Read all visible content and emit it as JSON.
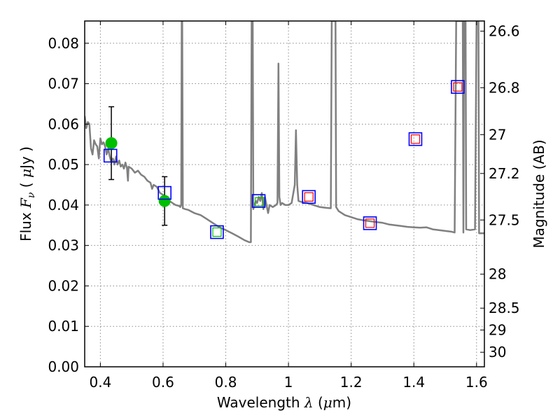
{
  "chart_data": {
    "type": "scatter",
    "xlabel": {
      "text": "Wavelength",
      "symbol": "λ",
      "unit_open": " (",
      "mu": "μ",
      "unit_end": "m)"
    },
    "ylabel": {
      "text": "Flux",
      "symbol": "F",
      "sub": "ν",
      "unit_open": "(",
      "mu": "μ",
      "unit_end": "Jy )"
    },
    "y2label": "Magnitude (AB)",
    "xlim": [
      0.35,
      1.625
    ],
    "ylim": [
      0.0,
      0.0855
    ],
    "xticks": [
      0.4,
      0.6,
      0.8,
      1.0,
      1.2,
      1.4,
      1.6
    ],
    "xtick_labels": [
      "0.4",
      "0.6",
      "0.8",
      "1",
      "1.2",
      "1.4",
      "1.6"
    ],
    "yticks": [
      0.0,
      0.01,
      0.02,
      0.03,
      0.04,
      0.05,
      0.06,
      0.07,
      0.08
    ],
    "ytick_labels": [
      "0.00",
      "0.01",
      "0.02",
      "0.03",
      "0.04",
      "0.05",
      "0.06",
      "0.07",
      "0.08"
    ],
    "y2ticks": [
      {
        "label": "26.6",
        "flux": 0.083
      },
      {
        "label": "26.8",
        "flux": 0.069
      },
      {
        "label": "27",
        "flux": 0.0574
      },
      {
        "label": "27.2",
        "flux": 0.0478
      },
      {
        "label": "27.5",
        "flux": 0.0363
      },
      {
        "label": "28",
        "flux": 0.0229
      },
      {
        "label": "28.5",
        "flux": 0.0145
      },
      {
        "label": "29",
        "flux": 0.0091
      },
      {
        "label": "30",
        "flux": 0.0036
      }
    ],
    "grid": true,
    "series": [
      {
        "kind": "model_spectrum",
        "color": "#808080",
        "points": [
          [
            0.35,
            0.062
          ],
          [
            0.355,
            0.059
          ],
          [
            0.36,
            0.0605
          ],
          [
            0.365,
            0.06
          ],
          [
            0.37,
            0.054
          ],
          [
            0.375,
            0.0525
          ],
          [
            0.38,
            0.056
          ],
          [
            0.385,
            0.055
          ],
          [
            0.39,
            0.0545
          ],
          [
            0.395,
            0.0515
          ],
          [
            0.4,
            0.0565
          ],
          [
            0.405,
            0.055
          ],
          [
            0.41,
            0.0555
          ],
          [
            0.415,
            0.0545
          ],
          [
            0.42,
            0.0525
          ],
          [
            0.425,
            0.054
          ],
          [
            0.43,
            0.052
          ],
          [
            0.435,
            0.0505
          ],
          [
            0.44,
            0.0515
          ],
          [
            0.445,
            0.05
          ],
          [
            0.45,
            0.052
          ],
          [
            0.455,
            0.05
          ],
          [
            0.46,
            0.051
          ],
          [
            0.465,
            0.0495
          ],
          [
            0.47,
            0.05
          ],
          [
            0.475,
            0.049
          ],
          [
            0.48,
            0.0505
          ],
          [
            0.485,
            0.049
          ],
          [
            0.488,
            0.046
          ],
          [
            0.49,
            0.0495
          ],
          [
            0.5,
            0.049
          ],
          [
            0.51,
            0.048
          ],
          [
            0.52,
            0.0485
          ],
          [
            0.53,
            0.0475
          ],
          [
            0.54,
            0.047
          ],
          [
            0.55,
            0.046
          ],
          [
            0.56,
            0.0455
          ],
          [
            0.565,
            0.044
          ],
          [
            0.57,
            0.045
          ],
          [
            0.58,
            0.0445
          ],
          [
            0.59,
            0.043
          ],
          [
            0.6,
            0.0425
          ],
          [
            0.61,
            0.0415
          ],
          [
            0.62,
            0.041
          ],
          [
            0.63,
            0.0405
          ],
          [
            0.64,
            0.04
          ],
          [
            0.65,
            0.0398
          ],
          [
            0.655,
            0.0395
          ],
          [
            0.658,
            0.04
          ],
          [
            0.6595,
            0.0855
          ],
          [
            0.661,
            0.0855
          ],
          [
            0.663,
            0.0392
          ],
          [
            0.67,
            0.039
          ],
          [
            0.68,
            0.0388
          ],
          [
            0.69,
            0.0384
          ],
          [
            0.7,
            0.038
          ],
          [
            0.72,
            0.0375
          ],
          [
            0.74,
            0.0365
          ],
          [
            0.76,
            0.0355
          ],
          [
            0.78,
            0.0345
          ],
          [
            0.8,
            0.0338
          ],
          [
            0.82,
            0.033
          ],
          [
            0.84,
            0.0322
          ],
          [
            0.86,
            0.0313
          ],
          [
            0.875,
            0.0308
          ],
          [
            0.88,
            0.0308
          ],
          [
            0.8825,
            0.0855
          ],
          [
            0.886,
            0.0855
          ],
          [
            0.888,
            0.039
          ],
          [
            0.892,
            0.04
          ],
          [
            0.896,
            0.041
          ],
          [
            0.9,
            0.0405
          ],
          [
            0.905,
            0.042
          ],
          [
            0.91,
            0.041
          ],
          [
            0.915,
            0.043
          ],
          [
            0.92,
            0.039
          ],
          [
            0.925,
            0.042
          ],
          [
            0.93,
            0.04
          ],
          [
            0.935,
            0.038
          ],
          [
            0.94,
            0.04
          ],
          [
            0.95,
            0.0395
          ],
          [
            0.96,
            0.04
          ],
          [
            0.965,
            0.0405
          ],
          [
            0.968,
            0.075
          ],
          [
            0.971,
            0.042
          ],
          [
            0.975,
            0.04
          ],
          [
            0.98,
            0.0405
          ],
          [
            0.99,
            0.04
          ],
          [
            1.0,
            0.04
          ],
          [
            1.01,
            0.0405
          ],
          [
            1.02,
            0.045
          ],
          [
            1.024,
            0.0585
          ],
          [
            1.028,
            0.045
          ],
          [
            1.032,
            0.041
          ],
          [
            1.04,
            0.0408
          ],
          [
            1.06,
            0.0405
          ],
          [
            1.08,
            0.04
          ],
          [
            1.1,
            0.0395
          ],
          [
            1.12,
            0.0393
          ],
          [
            1.135,
            0.0392
          ],
          [
            1.138,
            0.0855
          ],
          [
            1.15,
            0.0855
          ],
          [
            1.152,
            0.0395
          ],
          [
            1.16,
            0.0385
          ],
          [
            1.18,
            0.0375
          ],
          [
            1.2,
            0.037
          ],
          [
            1.22,
            0.0365
          ],
          [
            1.24,
            0.0362
          ],
          [
            1.26,
            0.036
          ],
          [
            1.28,
            0.0358
          ],
          [
            1.3,
            0.0356
          ],
          [
            1.32,
            0.0352
          ],
          [
            1.34,
            0.035
          ],
          [
            1.36,
            0.0348
          ],
          [
            1.38,
            0.0346
          ],
          [
            1.4,
            0.0345
          ],
          [
            1.42,
            0.0344
          ],
          [
            1.44,
            0.0345
          ],
          [
            1.46,
            0.034
          ],
          [
            1.48,
            0.0338
          ],
          [
            1.5,
            0.0336
          ],
          [
            1.52,
            0.0334
          ],
          [
            1.53,
            0.0332
          ],
          [
            1.535,
            0.0855
          ],
          [
            1.556,
            0.0855
          ],
          [
            1.558,
            0.0332
          ],
          [
            1.56,
            0.0855
          ],
          [
            1.565,
            0.0855
          ],
          [
            1.567,
            0.034
          ],
          [
            1.58,
            0.0338
          ],
          [
            1.595,
            0.034
          ],
          [
            1.6,
            0.0855
          ],
          [
            1.606,
            0.0855
          ],
          [
            1.608,
            0.033
          ],
          [
            1.625,
            0.033
          ]
        ]
      },
      {
        "kind": "observed",
        "color": "#00bf00",
        "errbar_color": "#000000",
        "points": [
          {
            "x": 0.435,
            "y": 0.0553,
            "err": 0.009
          },
          {
            "x": 0.605,
            "y": 0.041,
            "err": 0.006
          }
        ]
      },
      {
        "kind": "model_photometry",
        "color": "#0000ff",
        "points": [
          [
            0.432,
            0.0522
          ],
          [
            0.605,
            0.043
          ],
          [
            0.772,
            0.0333
          ],
          [
            0.905,
            0.041
          ],
          [
            1.065,
            0.042
          ],
          [
            1.26,
            0.0355
          ],
          [
            1.405,
            0.0563
          ],
          [
            1.54,
            0.0692
          ]
        ]
      },
      {
        "kind": "model_photometry_alt",
        "color": "#ff0000",
        "points": [
          [
            1.065,
            0.042
          ],
          [
            1.26,
            0.0355
          ],
          [
            1.405,
            0.0563
          ],
          [
            1.54,
            0.0692
          ]
        ]
      },
      {
        "kind": "model_photometry_green",
        "color": "#00bf00",
        "points": [
          [
            0.772,
            0.0333
          ],
          [
            0.908,
            0.0408
          ]
        ]
      }
    ]
  }
}
